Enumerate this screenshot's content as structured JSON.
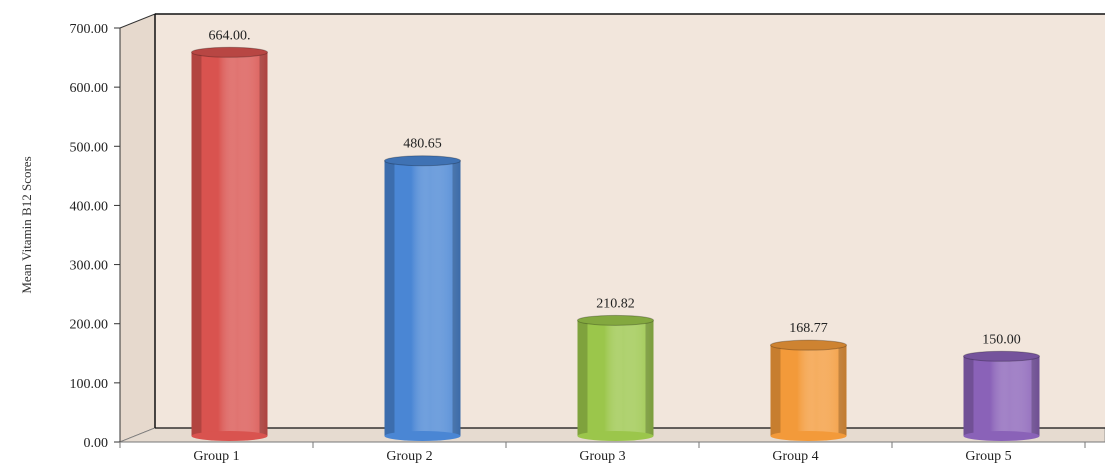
{
  "chart_data": {
    "type": "bar",
    "title": "",
    "xlabel": "",
    "ylabel": "Mean Vitamin B12 Scores",
    "categories": [
      "Group 1",
      "Group 2",
      "Group 3",
      "Group 4",
      "Group 5"
    ],
    "values": [
      664.0,
      480.65,
      210.82,
      168.77,
      150.0
    ],
    "data_labels": [
      "664.00.",
      "480.65",
      "210.82",
      "168.77",
      "150.00"
    ],
    "ylim": [
      0,
      700
    ],
    "yticks": [
      "0.00",
      "100.00",
      "200.00",
      "300.00",
      "400.00",
      "500.00",
      "600.00",
      "700.00"
    ],
    "grid": false,
    "legend": "none",
    "style": "3d-cylinder",
    "colors": {
      "wall": "#f2e6dc",
      "floor": "#e9ddd2",
      "series": [
        "#d9534f",
        "#4a86d4",
        "#9bc64b",
        "#f39a3a",
        "#8a62b8"
      ]
    }
  }
}
